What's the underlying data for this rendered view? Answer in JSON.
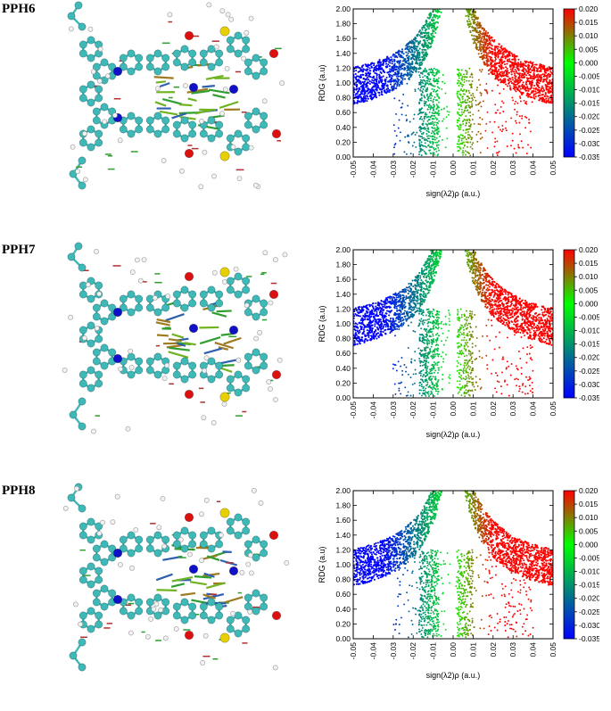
{
  "figure": {
    "panels": [
      {
        "label": "PPH6"
      },
      {
        "label": "PPH7"
      },
      {
        "label": "PPH8"
      }
    ]
  },
  "colors": {
    "blue": "#0000ff",
    "green": "#00ff00",
    "red": "#ff0000",
    "carbon": "#3fb8b8",
    "nitrogen": "#1010c8",
    "oxygen": "#dd1010",
    "sulfur": "#e8d000",
    "hydrogen": "#f2f2f2"
  },
  "chart_data": [
    {
      "type": "scatter",
      "panel": "PPH6",
      "xlabel": "sign(λ2)ρ (a.u.)",
      "ylabel": "RDG (a.u)",
      "xlim": [
        -0.05,
        0.05
      ],
      "ylim": [
        0.0,
        2.0
      ],
      "x_ticks": [
        "-0.05",
        "-0.04",
        "-0.03",
        "-0.02",
        "-0.01",
        "0.00",
        "0.01",
        "0.02",
        "0.03",
        "0.04",
        "0.05"
      ],
      "y_ticks": [
        "0.00",
        "0.20",
        "0.40",
        "0.60",
        "0.80",
        "1.00",
        "1.20",
        "1.40",
        "1.60",
        "1.80",
        "2.00"
      ],
      "colorbar": {
        "range": [
          -0.035,
          0.02
        ],
        "ticks": [
          "0.020",
          "0.015",
          "0.010",
          "0.005",
          "0.000",
          "-0.005",
          "-0.010",
          "-0.015",
          "-0.020",
          "-0.025",
          "-0.030",
          "-0.035"
        ]
      },
      "grid": false
    },
    {
      "type": "scatter",
      "panel": "PPH7",
      "xlabel": "sign(λ2)ρ (a.u.)",
      "ylabel": "RDG (a.u)",
      "xlim": [
        -0.05,
        0.05
      ],
      "ylim": [
        0.0,
        2.0
      ],
      "x_ticks": [
        "-0.05",
        "-0.04",
        "-0.03",
        "-0.02",
        "-0.01",
        "0.00",
        "0.01",
        "0.02",
        "0.03",
        "0.04",
        "0.05"
      ],
      "y_ticks": [
        "0.00",
        "0.20",
        "0.40",
        "0.60",
        "0.80",
        "1.00",
        "1.20",
        "1.40",
        "1.60",
        "1.80",
        "2.00"
      ],
      "colorbar": {
        "range": [
          -0.035,
          0.02
        ],
        "ticks": [
          "0.020",
          "0.015",
          "0.010",
          "0.005",
          "0.000",
          "-0.005",
          "-0.010",
          "-0.015",
          "-0.020",
          "-0.025",
          "-0.030",
          "-0.035"
        ]
      },
      "grid": false
    },
    {
      "type": "scatter",
      "panel": "PPH8",
      "xlabel": "sign(λ2)ρ (a.u.)",
      "ylabel": "RDG (a.u)",
      "xlim": [
        -0.05,
        0.05
      ],
      "ylim": [
        0.0,
        2.0
      ],
      "x_ticks": [
        "-0.05",
        "-0.04",
        "-0.03",
        "-0.02",
        "-0.01",
        "0.00",
        "0.01",
        "0.02",
        "0.03",
        "0.04",
        "0.05"
      ],
      "y_ticks": [
        "0.00",
        "0.20",
        "0.40",
        "0.60",
        "0.80",
        "1.00",
        "1.20",
        "1.40",
        "1.60",
        "1.80",
        "2.00"
      ],
      "colorbar": {
        "range": [
          -0.035,
          0.02
        ],
        "ticks": [
          "0.020",
          "0.015",
          "0.010",
          "0.005",
          "0.000",
          "-0.005",
          "-0.010",
          "-0.015",
          "-0.020",
          "-0.025",
          "-0.030",
          "-0.035"
        ]
      },
      "grid": false
    }
  ]
}
